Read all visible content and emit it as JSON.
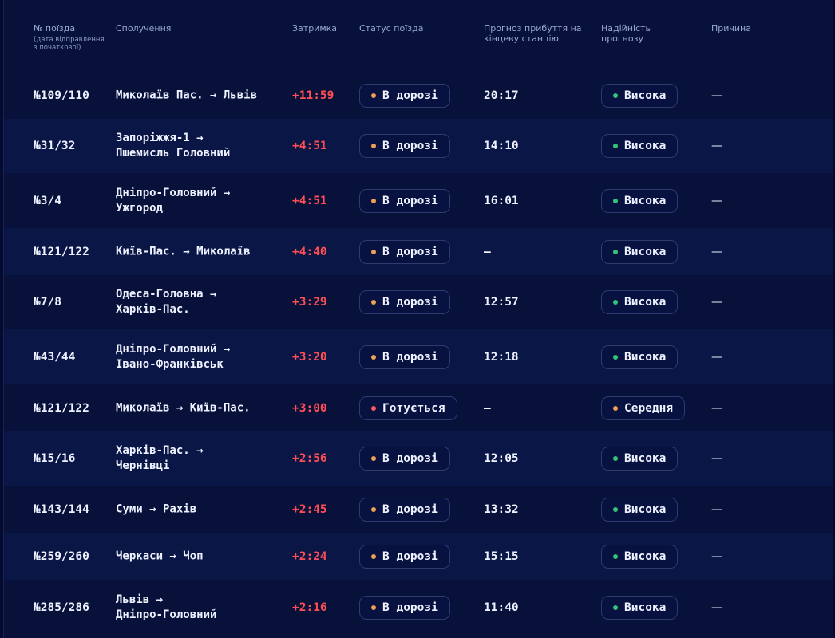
{
  "headers": {
    "train": "№ поїзда",
    "train_sub": "(дата відправлення з початкової)",
    "route": "Сполучення",
    "delay": "Затримка",
    "status": "Статус поїзда",
    "eta": "Прогноз прибуття на кінцеву станцію",
    "reliability": "Надійність прогнозу",
    "reason": "Причина"
  },
  "colors": {
    "status_on_way": "#f0a054",
    "status_preparing": "#ff5a5f",
    "rel_high": "#33c47a",
    "rel_medium": "#f0a054"
  },
  "rows": [
    {
      "train": "№109/110",
      "route": [
        "Миколаїв Пас. → Львів"
      ],
      "delay": "+11:59",
      "status": "В дорозі",
      "status_kind": "on_way",
      "eta": "20:17",
      "reliability": "Висока",
      "rel_kind": "high",
      "reason": "—"
    },
    {
      "train": "№31/32",
      "route": [
        "Запоріжжя-1 →",
        "Пшемисль Головний"
      ],
      "delay": "+4:51",
      "status": "В дорозі",
      "status_kind": "on_way",
      "eta": "14:10",
      "reliability": "Висока",
      "rel_kind": "high",
      "reason": "—"
    },
    {
      "train": "№3/4",
      "route": [
        "Дніпро-Головний →",
        "Ужгород"
      ],
      "delay": "+4:51",
      "status": "В дорозі",
      "status_kind": "on_way",
      "eta": "16:01",
      "reliability": "Висока",
      "rel_kind": "high",
      "reason": "—"
    },
    {
      "train": "№121/122",
      "route": [
        "Київ-Пас. → Миколаїв"
      ],
      "delay": "+4:40",
      "status": "В дорозі",
      "status_kind": "on_way",
      "eta": "—",
      "reliability": "Висока",
      "rel_kind": "high",
      "reason": "—"
    },
    {
      "train": "№7/8",
      "route": [
        "Одеса-Головна →",
        "Харків-Пас."
      ],
      "delay": "+3:29",
      "status": "В дорозі",
      "status_kind": "on_way",
      "eta": "12:57",
      "reliability": "Висока",
      "rel_kind": "high",
      "reason": "—"
    },
    {
      "train": "№43/44",
      "route": [
        "Дніпро-Головний →",
        "Івано-Франківськ"
      ],
      "delay": "+3:20",
      "status": "В дорозі",
      "status_kind": "on_way",
      "eta": "12:18",
      "reliability": "Висока",
      "rel_kind": "high",
      "reason": "—"
    },
    {
      "train": "№121/122",
      "route": [
        "Миколаїв → Київ-Пас."
      ],
      "delay": "+3:00",
      "status": "Готується",
      "status_kind": "preparing",
      "eta": "—",
      "reliability": "Середня",
      "rel_kind": "medium",
      "reason": "—"
    },
    {
      "train": "№15/16",
      "route": [
        "Харків-Пас. →",
        "Чернівці"
      ],
      "delay": "+2:56",
      "status": "В дорозі",
      "status_kind": "on_way",
      "eta": "12:05",
      "reliability": "Висока",
      "rel_kind": "high",
      "reason": "—"
    },
    {
      "train": "№143/144",
      "route": [
        "Суми → Рахів"
      ],
      "delay": "+2:45",
      "status": "В дорозі",
      "status_kind": "on_way",
      "eta": "13:32",
      "reliability": "Висока",
      "rel_kind": "high",
      "reason": "—"
    },
    {
      "train": "№259/260",
      "route": [
        "Черкаси → Чоп"
      ],
      "delay": "+2:24",
      "status": "В дорозі",
      "status_kind": "on_way",
      "eta": "15:15",
      "reliability": "Висока",
      "rel_kind": "high",
      "reason": "—"
    },
    {
      "train": "№285/286",
      "route": [
        "Львів →",
        "Дніпро-Головний"
      ],
      "delay": "+2:16",
      "status": "В дорозі",
      "status_kind": "on_way",
      "eta": "11:40",
      "reliability": "Висока",
      "rel_kind": "high",
      "reason": "—"
    }
  ]
}
